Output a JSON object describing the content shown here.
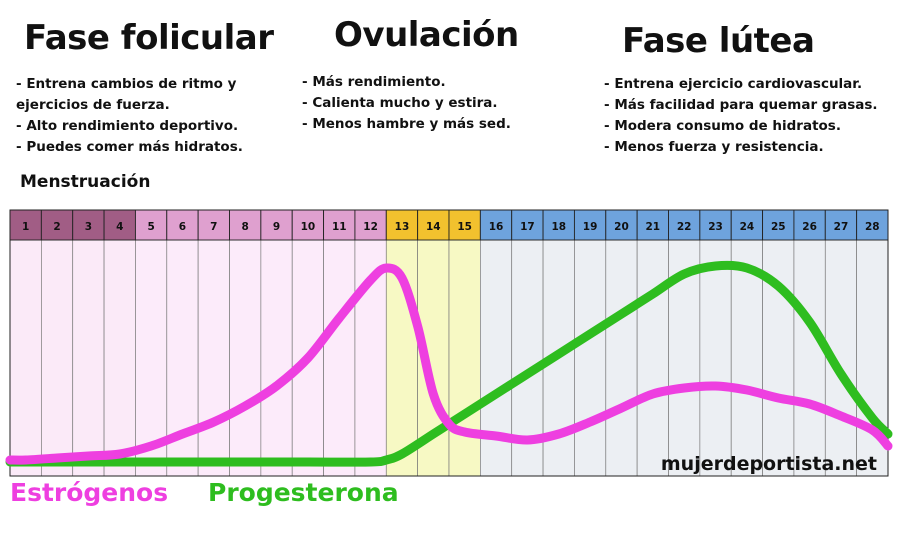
{
  "phases": [
    {
      "title": "Fase folicular",
      "bullets": [
        "Entrena cambios de ritmo y",
        "ejercicios de fuerza.",
        "Alto rendimiento deportivo.",
        "Puedes comer más hidratos."
      ]
    },
    {
      "title": "Ovulación",
      "bullets": [
        "Más rendimiento.",
        "Calienta mucho y estira.",
        "Menos hambre y más sed."
      ]
    },
    {
      "title": "Fase lútea",
      "bullets": [
        "Entrena ejercicio cardiovascular.",
        "Más facilidad para quemar grasas.",
        "Modera consumo de hidratos.",
        "Menos fuerza y resistencia."
      ]
    }
  ],
  "menstruation_label": "Menstruación",
  "watermark": "mujerdeportista.net",
  "chart_data": {
    "type": "line",
    "x": [
      1,
      2,
      3,
      4,
      5,
      6,
      7,
      8,
      9,
      10,
      11,
      12,
      13,
      14,
      15,
      16,
      17,
      18,
      19,
      20,
      21,
      22,
      23,
      24,
      25,
      26,
      27,
      28
    ],
    "day_labels": [
      "1",
      "2",
      "3",
      "4",
      "5",
      "6",
      "7",
      "8",
      "9",
      "10",
      "11",
      "12",
      "13",
      "14",
      "15",
      "16",
      "17",
      "18",
      "19",
      "20",
      "21",
      "22",
      "23",
      "24",
      "25",
      "26",
      "27",
      "28"
    ],
    "day_groups": {
      "menstruation": [
        1,
        4
      ],
      "follicular": [
        5,
        12
      ],
      "ovulation": [
        13,
        15
      ],
      "luteal": [
        16,
        28
      ]
    },
    "ylim": [
      0,
      100
    ],
    "series": [
      {
        "name": "Estrógenos",
        "color": "#ee3fe0",
        "points": [
          [
            0.5,
            1
          ],
          [
            1,
            1
          ],
          [
            2,
            2
          ],
          [
            3,
            3
          ],
          [
            4,
            4
          ],
          [
            5,
            8
          ],
          [
            6,
            14
          ],
          [
            7,
            20
          ],
          [
            8,
            28
          ],
          [
            9,
            38
          ],
          [
            10,
            52
          ],
          [
            11,
            72
          ],
          [
            12,
            91
          ],
          [
            12.5,
            97
          ],
          [
            13,
            92
          ],
          [
            13.5,
            68
          ],
          [
            14,
            34
          ],
          [
            14.5,
            19
          ],
          [
            15,
            15
          ],
          [
            16,
            13
          ],
          [
            17,
            11
          ],
          [
            18,
            14
          ],
          [
            19,
            20
          ],
          [
            20,
            27
          ],
          [
            21,
            34
          ],
          [
            22,
            37
          ],
          [
            23,
            38
          ],
          [
            24,
            36
          ],
          [
            25,
            32
          ],
          [
            26,
            29
          ],
          [
            27,
            23
          ],
          [
            28,
            16
          ],
          [
            28.5,
            8
          ]
        ]
      },
      {
        "name": "Progesterona",
        "color": "#2ebd1f",
        "points": [
          [
            0.5,
            0
          ],
          [
            2,
            0
          ],
          [
            4,
            0
          ],
          [
            6,
            0
          ],
          [
            8,
            0
          ],
          [
            10,
            0
          ],
          [
            12,
            0
          ],
          [
            12.5,
            1
          ],
          [
            13,
            4
          ],
          [
            14,
            14
          ],
          [
            15,
            24
          ],
          [
            16,
            34
          ],
          [
            17,
            44
          ],
          [
            18,
            54
          ],
          [
            19,
            64
          ],
          [
            20,
            74
          ],
          [
            21,
            84
          ],
          [
            22,
            94
          ],
          [
            23,
            98
          ],
          [
            24,
            97
          ],
          [
            25,
            88
          ],
          [
            26,
            70
          ],
          [
            27,
            44
          ],
          [
            28,
            22
          ],
          [
            28.5,
            14
          ]
        ]
      }
    ],
    "colors": {
      "menstruation_header": "#a15d85",
      "menstruation_bg": "#fbeaf8",
      "follicular_header": "#dfa0cf",
      "follicular_bg": "#fcebfa",
      "ovulation_header": "#f2c12e",
      "ovulation_bg": "#f7f9c4",
      "luteal_header": "#6ea3dd",
      "luteal_bg": "#eceff3"
    }
  }
}
